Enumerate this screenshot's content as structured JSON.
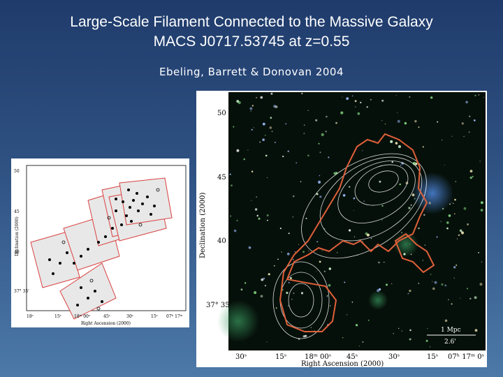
{
  "slide": {
    "title_line1": "Large-Scale Filament Connected to the Massive Galaxy",
    "title_line2": "MACS J0717.53745 at z=0.55",
    "citation": "Ebeling, Barrett & Donovan 2004"
  },
  "small_figure": {
    "ylabel": "Declination (2000)",
    "xlabel": "Right Ascension (2000)",
    "y_ticks": [
      "50",
      "45",
      "40",
      "37° 35'"
    ],
    "x_ticks": [
      "18ˢ",
      "15ˢ",
      "18ᵐ 00ˢ",
      "45ˢ",
      "30ˢ",
      "15ˢ",
      "07ʰ 17ᵐ"
    ]
  },
  "main_figure": {
    "ylabel": "Declination (2000)",
    "xlabel": "Right Ascension (2000)",
    "y_ticks": [
      "50",
      "45",
      "40",
      "37° 35'"
    ],
    "x_ticks": [
      "30ˢ",
      "15ˢ",
      "18ᵐ 00ˢ",
      "45ˢ",
      "30ˢ",
      "15ˢ",
      "07ʰ 17ᵐ 0ˢ"
    ],
    "scalebar_top": "1 Mpc",
    "scalebar_bottom": "2.6'"
  },
  "colors": {
    "background_top": "#1f3b6b",
    "background_bottom": "#4c79a8",
    "filament_outline": "#e0603a",
    "contours": "#ffffff",
    "survey_fields": "#d94040"
  }
}
